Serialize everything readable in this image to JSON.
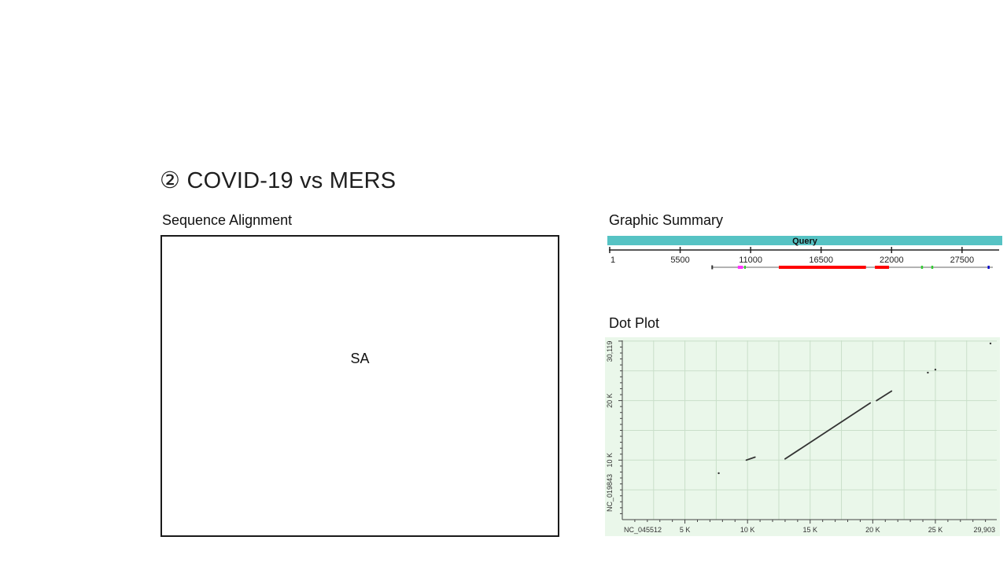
{
  "slide": {
    "title": "② COVID-19 vs MERS",
    "sequence_alignment": {
      "label": "Sequence Alignment",
      "placeholder_text": "SA"
    },
    "graphic_summary": {
      "label": "Graphic Summary",
      "query_label": "Query",
      "ruler_ticks": [
        "1",
        "5500",
        "11000",
        "16500",
        "22000",
        "27500"
      ],
      "colors": {
        "query_bar": "#56c3c4",
        "hit_high": "#ff0000",
        "hit_mid": "#ff33ff",
        "hit_low": "#33cc33",
        "hit_min": "#0000cc",
        "line": "#999999"
      }
    },
    "dot_plot": {
      "label": "Dot Plot",
      "x_axis_label": "NC_045512",
      "y_axis_label": "NC_019843",
      "x_tick_labels": [
        "5 K",
        "10 K",
        "15 K",
        "20 K",
        "25 K",
        "29,903"
      ],
      "y_tick_labels": [
        "10 K",
        "20 K",
        "30,119"
      ],
      "colors": {
        "background": "#eaf7ea",
        "grid": "#c9dfc9",
        "points": "#333333"
      }
    }
  },
  "chart_data": [
    {
      "type": "bar",
      "title": "Graphic Summary",
      "x_range": [
        1,
        29903
      ],
      "tick_values": [
        1,
        5500,
        11000,
        16500,
        22000,
        27500
      ],
      "segments": [
        {
          "start": 8000,
          "end": 29903,
          "color": "gray"
        },
        {
          "start": 10000,
          "end": 10400,
          "color": "magenta"
        },
        {
          "start": 10500,
          "end": 10600,
          "color": "green"
        },
        {
          "start": 13200,
          "end": 20000,
          "color": "red"
        },
        {
          "start": 20700,
          "end": 21800,
          "color": "red"
        },
        {
          "start": 24300,
          "end": 24450,
          "color": "green"
        },
        {
          "start": 25100,
          "end": 25250,
          "color": "green"
        },
        {
          "start": 29500,
          "end": 29650,
          "color": "blue"
        }
      ]
    },
    {
      "type": "scatter",
      "title": "Dot Plot",
      "xlabel": "NC_045512",
      "ylabel": "NC_019843",
      "xlim": [
        0,
        29903
      ],
      "ylim": [
        0,
        30119
      ],
      "x_ticks": [
        5000,
        10000,
        15000,
        20000,
        25000,
        29903
      ],
      "y_ticks": [
        10000,
        20000,
        30119
      ],
      "segments": [
        {
          "x1": 13000,
          "y1": 10200,
          "x2": 19800,
          "y2": 19600
        },
        {
          "x1": 20300,
          "y1": 20000,
          "x2": 21500,
          "y2": 21600
        },
        {
          "x1": 9900,
          "y1": 10000,
          "x2": 10600,
          "y2": 10500
        }
      ],
      "points": [
        {
          "x": 7700,
          "y": 7800
        },
        {
          "x": 24400,
          "y": 24700
        },
        {
          "x": 25000,
          "y": 25200
        },
        {
          "x": 29400,
          "y": 29600
        }
      ]
    }
  ]
}
